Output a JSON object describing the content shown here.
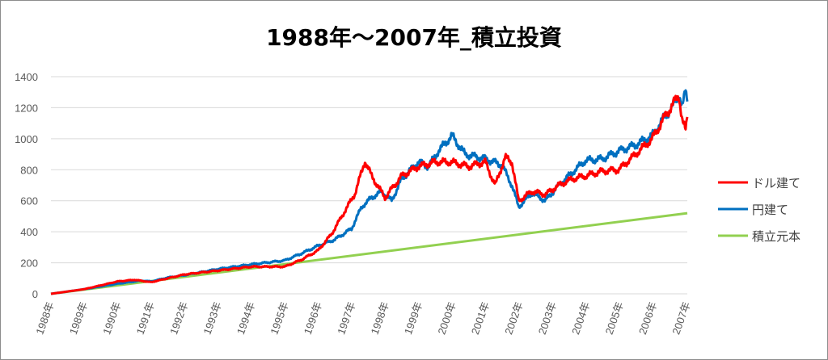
{
  "chart_data": {
    "type": "line",
    "title": "1988年～2007年_積立投資",
    "xlabel": "",
    "ylabel": "",
    "ylim": [
      0,
      1400
    ],
    "yticks": [
      0,
      200,
      400,
      600,
      800,
      1000,
      1200,
      1400
    ],
    "xlim": [
      1988,
      2007.05
    ],
    "xtick_labels": [
      "1988年",
      "1989年",
      "1990年",
      "1991年",
      "1992年",
      "1993年",
      "1994年",
      "1995年",
      "1996年",
      "1997年",
      "1998年",
      "1999年",
      "2000年",
      "2001年",
      "2002年",
      "2003年",
      "2004年",
      "2005年",
      "2006年",
      "2007年"
    ],
    "grid": true,
    "legend_position": "right",
    "series": [
      {
        "name": "ドル建て",
        "color": "#ff0000",
        "points": [
          [
            1988,
            0
          ],
          [
            1989,
            30
          ],
          [
            1990,
            80
          ],
          [
            1990.5,
            90
          ],
          [
            1991,
            75
          ],
          [
            1992,
            125
          ],
          [
            1993,
            150
          ],
          [
            1994,
            175
          ],
          [
            1995,
            175
          ],
          [
            1995.5,
            220
          ],
          [
            1996,
            280
          ],
          [
            1996.4,
            385
          ],
          [
            1997.1,
            645
          ],
          [
            1997.4,
            855
          ],
          [
            1997.6,
            760
          ],
          [
            1998,
            620
          ],
          [
            1998.5,
            760
          ],
          [
            1999,
            820
          ],
          [
            1999.5,
            850
          ],
          [
            2000,
            850
          ],
          [
            2000.5,
            820
          ],
          [
            2001,
            850
          ],
          [
            2001.3,
            700
          ],
          [
            2001.6,
            880
          ],
          [
            2001.8,
            850
          ],
          [
            2002,
            600
          ],
          [
            2002.4,
            660
          ],
          [
            2002.8,
            640
          ],
          [
            2003.2,
            700
          ],
          [
            2003.6,
            740
          ],
          [
            2004,
            760
          ],
          [
            2004.5,
            790
          ],
          [
            2005,
            800
          ],
          [
            2005.5,
            900
          ],
          [
            2006,
            1000
          ],
          [
            2006.4,
            1150
          ],
          [
            2006.8,
            1280
          ],
          [
            2006.9,
            1120
          ],
          [
            2007,
            1050
          ],
          [
            2007.05,
            1140
          ]
        ]
      },
      {
        "name": "円建て",
        "color": "#0070c0",
        "points": [
          [
            1988,
            0
          ],
          [
            1989,
            30
          ],
          [
            1990,
            65
          ],
          [
            1990.7,
            85
          ],
          [
            1991,
            80
          ],
          [
            1991.5,
            105
          ],
          [
            1992,
            120
          ],
          [
            1993,
            160
          ],
          [
            1994,
            190
          ],
          [
            1995,
            215
          ],
          [
            1995.5,
            260
          ],
          [
            1996,
            310
          ],
          [
            1996.5,
            350
          ],
          [
            1997,
            420
          ],
          [
            1997.3,
            560
          ],
          [
            1997.6,
            620
          ],
          [
            1997.9,
            660
          ],
          [
            1998.2,
            600
          ],
          [
            1998.5,
            740
          ],
          [
            1999,
            850
          ],
          [
            1999.3,
            820
          ],
          [
            1999.6,
            920
          ],
          [
            2000,
            1020
          ],
          [
            2000.4,
            900
          ],
          [
            2000.8,
            880
          ],
          [
            2001,
            870
          ],
          [
            2001.5,
            830
          ],
          [
            2001.8,
            700
          ],
          [
            2002,
            560
          ],
          [
            2002.4,
            650
          ],
          [
            2002.8,
            600
          ],
          [
            2003.2,
            700
          ],
          [
            2003.6,
            780
          ],
          [
            2004,
            860
          ],
          [
            2004.5,
            870
          ],
          [
            2005,
            920
          ],
          [
            2005.5,
            960
          ],
          [
            2006,
            1020
          ],
          [
            2006.4,
            1150
          ],
          [
            2006.6,
            1200
          ],
          [
            2006.8,
            1290
          ],
          [
            2006.9,
            1200
          ],
          [
            2007,
            1310
          ],
          [
            2007.05,
            1240
          ]
        ]
      },
      {
        "name": "積立元本",
        "color": "#92d050",
        "points": [
          [
            1988,
            0
          ],
          [
            2007.05,
            520
          ]
        ]
      }
    ]
  }
}
